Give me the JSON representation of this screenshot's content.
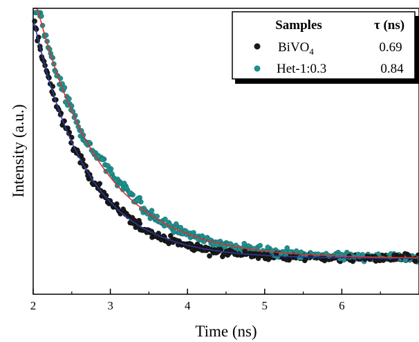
{
  "chart_data": {
    "type": "scatter",
    "title": "",
    "xlabel": "Time (ns)",
    "ylabel": "Intensity (a.u.)",
    "xlim": [
      2,
      7
    ],
    "ylim": [
      0,
      1
    ],
    "xticks": [
      "2",
      "3",
      "4",
      "5",
      "6"
    ],
    "y_tick_labels": false,
    "grid": false,
    "legend": {
      "placement": "top-right",
      "header_name": "Samples",
      "header_value": "τ (ns)"
    },
    "series": [
      {
        "name": "BiVO",
        "name_subscript": "4",
        "tau": "0.69",
        "marker_color": "#1a1a1a",
        "fit_color": "#2b3a9e",
        "fit": {
          "y0": 0.125,
          "A": 0.84,
          "x0": 2.0,
          "tau": 0.69
        }
      },
      {
        "name": "Het-1:0.3",
        "tau": "0.84",
        "marker_color": "#1f8f8f",
        "fit_color": "#e0302a",
        "fit": {
          "y0": 0.125,
          "A": 0.88,
          "x0": 2.05,
          "tau": 0.84
        }
      }
    ]
  }
}
